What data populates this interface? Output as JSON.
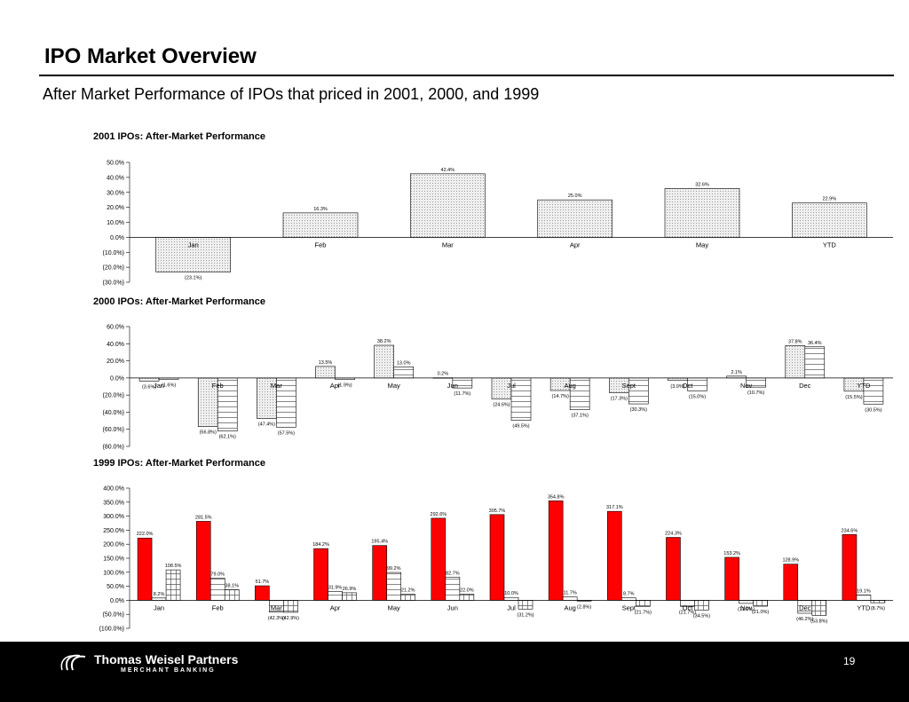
{
  "header": {
    "title": "IPO Market Overview",
    "subtitle": "After Market Performance of IPOs that priced in 2001, 2000, and 1999"
  },
  "footer": {
    "company": "Thomas Weisel Partners",
    "tagline": "MERCHANT BANKING",
    "page_number": "19"
  },
  "colors": {
    "bar_light": "#e6e6e6",
    "bar_red": "#ff0000",
    "footer_bg": "#000000"
  },
  "chart_data": [
    {
      "type": "bar",
      "title": "2001 IPOs:  After-Market Performance",
      "categories": [
        "Jan",
        "Feb",
        "Mar",
        "Apr",
        "May",
        "YTD"
      ],
      "series": [
        {
          "values": [
            -23.1,
            16.3,
            42.4,
            25.0,
            32.6,
            22.9
          ],
          "labels": [
            "(23.1%)",
            "16.3%",
            "42.4%",
            "25.0%",
            "32.6%",
            "22.9%"
          ]
        }
      ],
      "ylim": [
        -30,
        50
      ],
      "yticks": [
        50,
        40,
        30,
        20,
        10,
        0,
        -10,
        -20,
        -30
      ],
      "ytick_labels": [
        "50.0%",
        "40.0%",
        "30.0%",
        "20.0%",
        "10.0%",
        "0.0%",
        "(10.0%)",
        "(20.0%)",
        "(30.0%)"
      ]
    },
    {
      "type": "bar",
      "title": "2000 IPOs:  After-Market Performance",
      "categories": [
        "Jan",
        "Feb",
        "Mar",
        "Apr",
        "May",
        "Jun",
        "Jul",
        "Aug",
        "Sept",
        "Oct",
        "Nov",
        "Dec",
        "YTD"
      ],
      "series": [
        {
          "values": [
            -3.6,
            -56.8,
            -47.4,
            13.5,
            38.2,
            0.2,
            -24.6,
            -14.7,
            -17.3,
            -3.0,
            2.1,
            37.8,
            -15.5
          ],
          "labels": [
            "(3.6%)",
            "(56.8%)",
            "(47.4%)",
            "13.5%",
            "38.2%",
            "0.2%",
            "(24.6%)",
            "(14.7%)",
            "(17.3%)",
            "(3.0%)",
            "2.1%",
            "37.8%",
            "(15.5%)"
          ]
        },
        {
          "values": [
            -1.6,
            -62.1,
            -57.5,
            -1.9,
            13.0,
            -11.7,
            -49.5,
            -37.1,
            -30.3,
            -15.0,
            -10.7,
            36.4,
            -30.5
          ],
          "labels": [
            "(1.6%)",
            "(62.1%)",
            "(57.5%)",
            "(1.9%)",
            "13.0%",
            "(11.7%)",
            "(49.5%)",
            "(37.1%)",
            "(30.3%)",
            "(15.0%)",
            "(10.7%)",
            "36.4%",
            "(30.5%)"
          ]
        }
      ],
      "ylim": [
        -80,
        60
      ],
      "yticks": [
        60,
        40,
        20,
        0,
        -20,
        -40,
        -60,
        -80
      ],
      "ytick_labels": [
        "60.0%",
        "40.0%",
        "20.0%",
        "0.0%",
        "(20.0%)",
        "(40.0%)",
        "(60.0%)",
        "(80.0%)"
      ]
    },
    {
      "type": "bar",
      "title": "1999 IPOs:  After-Market Performance",
      "categories": [
        "Jan",
        "Feb",
        "Mar",
        "Apr",
        "May",
        "Jun",
        "Jul",
        "Aug",
        "Sept",
        "Oct",
        "Nov",
        "Dec",
        "YTD"
      ],
      "series": [
        {
          "values": [
            222.0,
            281.5,
            51.7,
            184.2,
            195.4,
            292.6,
            305.7,
            354.8,
            317.1,
            224.3,
            153.2,
            128.9,
            234.6
          ],
          "labels": [
            "222.0%",
            "281.5%",
            "51.7%",
            "184.2%",
            "195.4%",
            "292.6%",
            "305.7%",
            "354.8%",
            "317.1%",
            "224.3%",
            "153.2%",
            "128.9%",
            "234.6%"
          ]
        },
        {
          "values": [
            8.2,
            79.0,
            -42.3,
            31.9,
            99.2,
            82.7,
            10.0,
            11.7,
            8.7,
            -21.7,
            -11.0,
            -46.2,
            19.1
          ],
          "labels": [
            "8.2%",
            "79.0%",
            "(42.3%)",
            "31.9%",
            "99.2%",
            "82.7%",
            "10.0%",
            "11.7%",
            "8.7%",
            "(21.7%)",
            "(11.0%)",
            "(46.2%)",
            "19.1%"
          ]
        },
        {
          "values": [
            108.5,
            38.1,
            -42.9,
            26.9,
            21.2,
            22.0,
            -31.2,
            -2.8,
            -21.7,
            -34.5,
            -21.0,
            -53.8,
            -8.7
          ],
          "labels": [
            "108.5%",
            "38.1%",
            "(42.9%)",
            "26.9%",
            "21.2%",
            "22.0%",
            "(31.2%)",
            "(2.8%)",
            "(21.7%)",
            "(34.5%)",
            "(21.0%)",
            "(53.8%)",
            "(8.7%)"
          ]
        }
      ],
      "ylim": [
        -100,
        400
      ],
      "yticks": [
        400,
        350,
        300,
        250,
        200,
        150,
        100,
        50,
        0,
        -50,
        -100
      ],
      "ytick_labels": [
        "400.0%",
        "350.0%",
        "300.0%",
        "250.0%",
        "200.0%",
        "150.0%",
        "100.0%",
        "50.0%",
        "0.0%",
        "(50.0%)",
        "(100.0%)"
      ]
    }
  ]
}
